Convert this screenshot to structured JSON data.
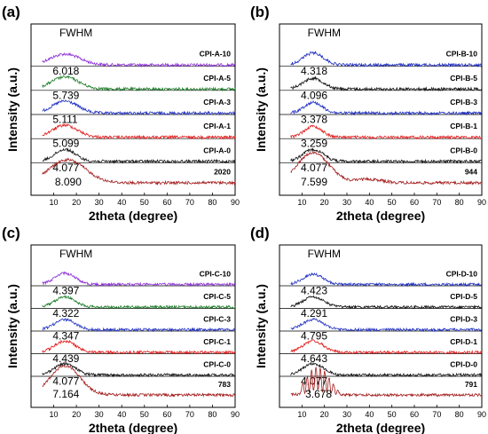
{
  "chart_data": [
    {
      "type": "line",
      "panel": "(a)",
      "xlabel": "2theta (degree)",
      "ylabel": "Intensity (a.u.)",
      "xlim": [
        0,
        90
      ],
      "xticks": [
        10,
        20,
        30,
        40,
        50,
        60,
        70,
        80,
        90
      ],
      "annotation": "FWHM",
      "series": [
        {
          "name": "CPI-A-10",
          "color": "#8b2fd6",
          "fwhm": "6.018",
          "peak_x": 15,
          "peak_h": 0.45,
          "width": 6.5,
          "noisy": false
        },
        {
          "name": "CPI-A-5",
          "color": "#1e7d2a",
          "fwhm": "5.739",
          "peak_x": 15,
          "peak_h": 0.5,
          "width": 6,
          "noisy": false
        },
        {
          "name": "CPI-A-3",
          "color": "#1f2fc0",
          "fwhm": "5.111",
          "peak_x": 15,
          "peak_h": 0.5,
          "width": 5.5,
          "noisy": false
        },
        {
          "name": "CPI-A-1",
          "color": "#e21b1b",
          "fwhm": "5.099",
          "peak_x": 15,
          "peak_h": 0.5,
          "width": 5.5,
          "noisy": false
        },
        {
          "name": "CPI-A-0",
          "color": "#111111",
          "fwhm": "4.077",
          "peak_x": 15,
          "peak_h": 0.5,
          "width": 4.5,
          "noisy": false
        },
        {
          "name": "2020",
          "color": "#a31c1c",
          "fwhm": "8.090",
          "peak_x": 16,
          "peak_h": 0.95,
          "width": 8,
          "noisy": false
        }
      ]
    },
    {
      "type": "line",
      "panel": "(b)",
      "xlabel": "2theta (degree)",
      "ylabel": "Intensity (a.u.)",
      "xlim": [
        0,
        90
      ],
      "xticks": [
        10,
        20,
        30,
        40,
        50,
        60,
        70,
        80,
        90
      ],
      "annotation": "FWHM",
      "series": [
        {
          "name": "CPI-B-10",
          "color": "#1f2fc0",
          "fwhm": "4.318",
          "peak_x": 15,
          "peak_h": 0.5,
          "width": 4.5,
          "noisy": false
        },
        {
          "name": "CPI-B-5",
          "color": "#111111",
          "fwhm": "4.096",
          "peak_x": 15,
          "peak_h": 0.45,
          "width": 4.5,
          "noisy": false
        },
        {
          "name": "CPI-B-3",
          "color": "#1f2fc0",
          "fwhm": "3.378",
          "peak_x": 15,
          "peak_h": 0.45,
          "width": 4,
          "noisy": false
        },
        {
          "name": "CPI-B-1",
          "color": "#e21b1b",
          "fwhm": "3.259",
          "peak_x": 15,
          "peak_h": 0.45,
          "width": 4,
          "noisy": false
        },
        {
          "name": "CPI-B-0",
          "color": "#111111",
          "fwhm": "4.077",
          "peak_x": 15,
          "peak_h": 0.5,
          "width": 4.5,
          "noisy": false
        },
        {
          "name": "944",
          "color": "#a31c1c",
          "fwhm": "7.599",
          "peak_x": 15,
          "peak_h": 1.25,
          "width": 7,
          "noisy": false
        }
      ]
    },
    {
      "type": "line",
      "panel": "(c)",
      "xlabel": "2theta (degree)",
      "ylabel": "Intensity (a.u.)",
      "xlim": [
        0,
        90
      ],
      "xticks": [
        10,
        20,
        30,
        40,
        50,
        60,
        70,
        80,
        90
      ],
      "annotation": "FWHM",
      "series": [
        {
          "name": "CPI-C-10",
          "color": "#8b2fd6",
          "fwhm": "4.397",
          "peak_x": 15,
          "peak_h": 0.5,
          "width": 4.5,
          "noisy": false
        },
        {
          "name": "CPI-C-5",
          "color": "#1e7d2a",
          "fwhm": "4.322",
          "peak_x": 15,
          "peak_h": 0.45,
          "width": 4.5,
          "noisy": false
        },
        {
          "name": "CPI-C-3",
          "color": "#1f2fc0",
          "fwhm": "4.347",
          "peak_x": 15,
          "peak_h": 0.45,
          "width": 4.5,
          "noisy": false
        },
        {
          "name": "CPI-C-1",
          "color": "#e21b1b",
          "fwhm": "4.439",
          "peak_x": 15,
          "peak_h": 0.5,
          "width": 4.5,
          "noisy": false
        },
        {
          "name": "CPI-C-0",
          "color": "#111111",
          "fwhm": "4.077",
          "peak_x": 15,
          "peak_h": 0.5,
          "width": 4.5,
          "noisy": false
        },
        {
          "name": "783",
          "color": "#a31c1c",
          "fwhm": "7.164",
          "peak_x": 15,
          "peak_h": 1.3,
          "width": 6.5,
          "noisy": false
        }
      ]
    },
    {
      "type": "line",
      "panel": "(d)",
      "xlabel": "2theta (degree)",
      "ylabel": "Intensity (a.u.)",
      "xlim": [
        0,
        90
      ],
      "xticks": [
        10,
        20,
        30,
        40,
        50,
        60,
        70,
        80,
        90
      ],
      "annotation": "FWHM",
      "series": [
        {
          "name": "CPI-D-10",
          "color": "#1f2fc0",
          "fwhm": "4.423",
          "peak_x": 15,
          "peak_h": 0.45,
          "width": 4.5,
          "noisy": false
        },
        {
          "name": "CPI-D-5",
          "color": "#111111",
          "fwhm": "4.291",
          "peak_x": 15,
          "peak_h": 0.45,
          "width": 4.5,
          "noisy": false
        },
        {
          "name": "CPI-D-3",
          "color": "#1f2fc0",
          "fwhm": "4.795",
          "peak_x": 15,
          "peak_h": 0.45,
          "width": 4.5,
          "noisy": false
        },
        {
          "name": "CPI-D-1",
          "color": "#e21b1b",
          "fwhm": "4.643",
          "peak_x": 15,
          "peak_h": 0.5,
          "width": 4.5,
          "noisy": false
        },
        {
          "name": "CPI-D-0",
          "color": "#111111",
          "fwhm": "4.077",
          "peak_x": 15,
          "peak_h": 0.5,
          "width": 4.5,
          "noisy": false
        },
        {
          "name": "791",
          "color": "#a31c1c",
          "fwhm": "3.678",
          "peak_x": 17,
          "peak_h": 1.2,
          "width": 5,
          "noisy": true
        }
      ]
    }
  ]
}
